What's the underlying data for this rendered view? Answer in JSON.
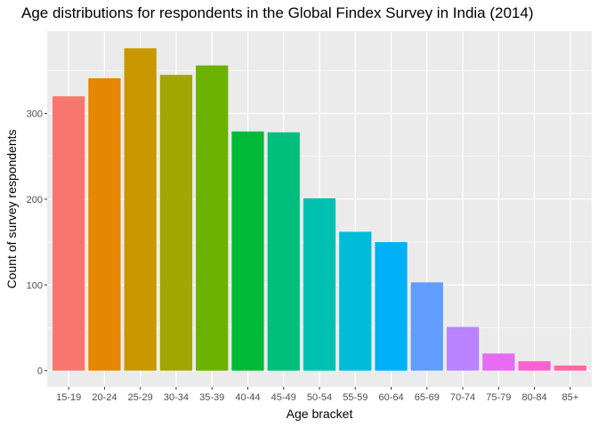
{
  "chart_data": {
    "type": "bar",
    "title": "Age distributions for respondents in the Global Findex Survey in India (2014)",
    "xlabel": "Age bracket",
    "ylabel": "Count of survey respondents",
    "categories": [
      "15-19",
      "20-24",
      "25-29",
      "30-34",
      "35-39",
      "40-44",
      "45-49",
      "50-54",
      "55-59",
      "60-64",
      "65-69",
      "70-74",
      "75-79",
      "80-84",
      "85+"
    ],
    "values": [
      320,
      341,
      376,
      345,
      356,
      279,
      278,
      201,
      162,
      150,
      103,
      51,
      20,
      11,
      6
    ],
    "colors": [
      "#F8766D",
      "#E58700",
      "#C99800",
      "#A3A500",
      "#6BB100",
      "#00BA38",
      "#00BF7D",
      "#00C0AF",
      "#00BCD8",
      "#00B0F6",
      "#619CFF",
      "#B983FF",
      "#E76BF3",
      "#FD61D1",
      "#FF67A4"
    ],
    "ylim": [
      -19,
      396
    ],
    "y_ticks": [
      0,
      100,
      200,
      300
    ],
    "y_minor_ticks": [
      50,
      150,
      250,
      350
    ],
    "grid": true,
    "legend": "none",
    "panel_background": "#EBEBEB",
    "grid_color": "#FFFFFF"
  }
}
